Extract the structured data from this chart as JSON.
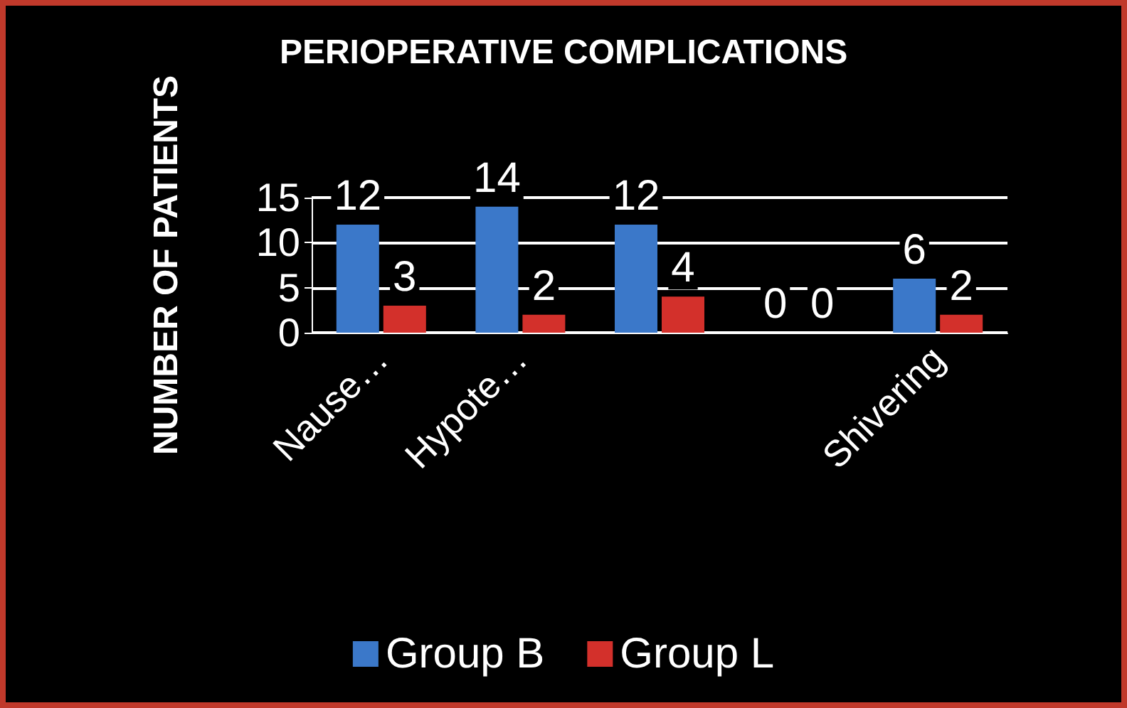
{
  "chart_data": {
    "type": "bar",
    "title": "PERIOPERATIVE COMPLICATIONS",
    "ylabel": "NUMBER OF PATIENTS",
    "categories": [
      "Nause…",
      "Hypote…",
      null,
      null,
      "Shivering"
    ],
    "series": [
      {
        "name": "Group B",
        "color": "#3b78c9",
        "values": [
          12,
          14,
          12,
          0,
          6
        ]
      },
      {
        "name": "Group L",
        "color": "#d3302b",
        "values": [
          3,
          2,
          4,
          0,
          2
        ]
      }
    ],
    "ylim": [
      0,
      15
    ],
    "yticks": [
      0,
      5,
      10,
      15
    ],
    "grid": "y",
    "legend": "bottom",
    "data_labels": true
  }
}
